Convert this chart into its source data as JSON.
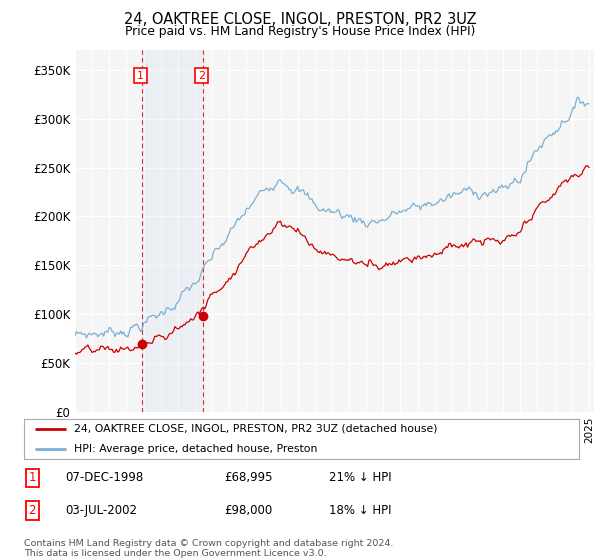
{
  "title": "24, OAKTREE CLOSE, INGOL, PRESTON, PR2 3UZ",
  "subtitle": "Price paid vs. HM Land Registry's House Price Index (HPI)",
  "ylim": [
    0,
    370000
  ],
  "yticks": [
    0,
    50000,
    100000,
    150000,
    200000,
    250000,
    300000,
    350000
  ],
  "ytick_labels": [
    "£0",
    "£50K",
    "£100K",
    "£150K",
    "£200K",
    "£250K",
    "£300K",
    "£350K"
  ],
  "sale1_x": 1998.92,
  "sale1_price": 68995,
  "sale2_x": 2002.5,
  "sale2_price": 98000,
  "sale_color": "#cc0000",
  "hpi_color": "#7bafd4",
  "legend_sale_label": "24, OAKTREE CLOSE, INGOL, PRESTON, PR2 3UZ (detached house)",
  "legend_hpi_label": "HPI: Average price, detached house, Preston",
  "copyright": "Contains HM Land Registry data © Crown copyright and database right 2024.\nThis data is licensed under the Open Government Licence v3.0.",
  "background_color": "#ffffff",
  "plot_bg_color": "#f5f5f5",
  "grid_color": "#ffffff"
}
